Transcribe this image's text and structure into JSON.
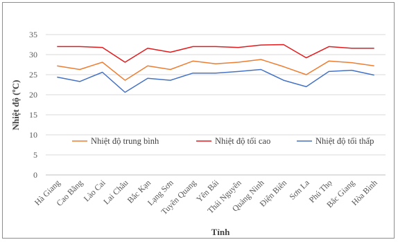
{
  "chart_data": {
    "type": "line",
    "title": "",
    "xlabel": "Tỉnh",
    "ylabel": "Nhiệt độ (ºC)",
    "ylim": [
      0,
      35
    ],
    "yticks": [
      0,
      5,
      10,
      15,
      20,
      25,
      30,
      35
    ],
    "grid": "horizontal",
    "legend_position": "inside-middle",
    "categories": [
      "Hà Giang",
      "Cao Bằng",
      "Lào Cai",
      "Lai Châu",
      "Bắc Kạn",
      "Lạng Sơn",
      "Tuyên Quang",
      "Yên Bái",
      "Thái Nguyên",
      "Quảng Ninh",
      "Điện Biên",
      "Sơn La",
      "Phú Thọ",
      "Bắc Giang",
      "Hòa Bình"
    ],
    "series": [
      {
        "name": "Nhiệt độ trung bình",
        "color": "#ed7d31",
        "values": [
          27.2,
          26.3,
          28.1,
          23.6,
          27.2,
          26.3,
          28.4,
          27.7,
          28.1,
          28.8,
          27.0,
          25.0,
          28.4,
          28.0,
          27.2
        ]
      },
      {
        "name": "Nhiệt độ tối cao",
        "color": "#e31a1c",
        "values": [
          32.0,
          32.0,
          31.8,
          28.1,
          31.6,
          30.6,
          32.0,
          32.0,
          31.8,
          32.4,
          32.5,
          29.2,
          32.0,
          31.6,
          31.6
        ]
      },
      {
        "name": "Nhiệt độ tối thấp",
        "color": "#4472c4",
        "values": [
          24.4,
          23.3,
          25.6,
          20.6,
          24.1,
          23.6,
          25.4,
          25.4,
          25.8,
          26.3,
          23.6,
          22.0,
          25.8,
          26.1,
          24.9
        ]
      }
    ]
  }
}
